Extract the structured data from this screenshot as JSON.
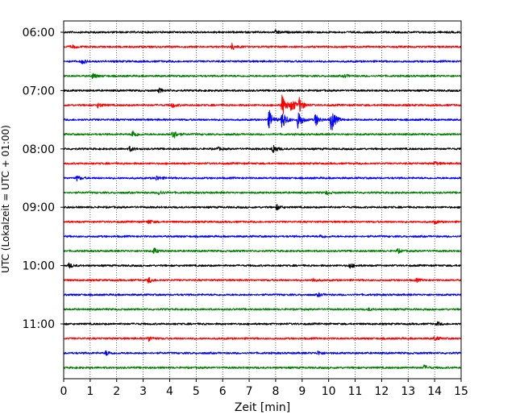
{
  "chart_data": {
    "type": "line",
    "title": "",
    "xlabel": "Zeit  [min]",
    "ylabel": "UTC (Lokalzeit = UTC + 01:00)",
    "xlim": [
      0,
      15
    ],
    "x_ticks": [
      "0",
      "1",
      "2",
      "3",
      "4",
      "5",
      "6",
      "7",
      "8",
      "9",
      "10",
      "11",
      "12",
      "13",
      "14",
      "15"
    ],
    "y_tick_labels": [
      "06:00",
      "07:00",
      "08:00",
      "09:00",
      "10:00",
      "11:00"
    ],
    "grid": "vertical dotted at each minute",
    "trace_colors_cycle": [
      "#000000",
      "#ff0000",
      "#0000ff",
      "#008000"
    ],
    "trace_interval_minutes": 15,
    "traces": [
      {
        "start": "06:00",
        "color": "#000000",
        "events": [
          {
            "t": 8.0,
            "amp": 0.25
          }
        ]
      },
      {
        "start": "06:15",
        "color": "#ff0000",
        "events": [
          {
            "t": 6.35,
            "amp": 0.4
          },
          {
            "t": 0.3,
            "amp": 0.2
          }
        ]
      },
      {
        "start": "06:30",
        "color": "#0000ff",
        "events": [
          {
            "t": 0.7,
            "amp": 0.3
          }
        ]
      },
      {
        "start": "06:45",
        "color": "#008000",
        "events": [
          {
            "t": 1.1,
            "amp": 0.35
          },
          {
            "t": 10.6,
            "amp": 0.2
          }
        ]
      },
      {
        "start": "07:00",
        "color": "#000000",
        "events": [
          {
            "t": 3.6,
            "amp": 0.25
          }
        ]
      },
      {
        "start": "07:15",
        "color": "#ff0000",
        "events": [
          {
            "t": 1.3,
            "amp": 0.3
          },
          {
            "t": 4.1,
            "amp": 0.3
          },
          {
            "t": 8.25,
            "amp": 1.5
          },
          {
            "t": 8.6,
            "amp": 0.9
          },
          {
            "t": 8.9,
            "amp": 0.9
          }
        ]
      },
      {
        "start": "07:30",
        "color": "#0000ff",
        "events": [
          {
            "t": 7.75,
            "amp": 1.2
          },
          {
            "t": 8.25,
            "amp": 1.3
          },
          {
            "t": 8.85,
            "amp": 1.2
          },
          {
            "t": 9.5,
            "amp": 0.8
          },
          {
            "t": 10.1,
            "amp": 1.6
          }
        ]
      },
      {
        "start": "07:45",
        "color": "#008000",
        "events": [
          {
            "t": 2.6,
            "amp": 0.5
          },
          {
            "t": 4.1,
            "amp": 0.8
          }
        ]
      },
      {
        "start": "08:00",
        "color": "#000000",
        "events": [
          {
            "t": 2.5,
            "amp": 0.3
          },
          {
            "t": 5.8,
            "amp": 0.2
          },
          {
            "t": 7.9,
            "amp": 0.6
          }
        ]
      },
      {
        "start": "08:15",
        "color": "#ff0000",
        "events": [
          {
            "t": 14.0,
            "amp": 0.25
          }
        ]
      },
      {
        "start": "08:30",
        "color": "#0000ff",
        "events": [
          {
            "t": 0.5,
            "amp": 0.3
          },
          {
            "t": 3.5,
            "amp": 0.3
          }
        ]
      },
      {
        "start": "08:45",
        "color": "#008000",
        "events": [
          {
            "t": 3.6,
            "amp": 0.3
          },
          {
            "t": 9.9,
            "amp": 0.2
          }
        ]
      },
      {
        "start": "09:00",
        "color": "#000000",
        "events": [
          {
            "t": 8.05,
            "amp": 0.3
          }
        ]
      },
      {
        "start": "09:15",
        "color": "#ff0000",
        "events": [
          {
            "t": 3.2,
            "amp": 0.25
          },
          {
            "t": 14.0,
            "amp": 0.2
          }
        ]
      },
      {
        "start": "09:30",
        "color": "#0000ff",
        "events": [
          {
            "t": 9.7,
            "amp": 0.2
          }
        ]
      },
      {
        "start": "09:45",
        "color": "#008000",
        "events": [
          {
            "t": 3.4,
            "amp": 0.35
          },
          {
            "t": 12.6,
            "amp": 0.25
          }
        ]
      },
      {
        "start": "10:00",
        "color": "#000000",
        "events": [
          {
            "t": 0.2,
            "amp": 0.3
          },
          {
            "t": 10.8,
            "amp": 0.3
          }
        ]
      },
      {
        "start": "10:15",
        "color": "#ff0000",
        "events": [
          {
            "t": 3.2,
            "amp": 0.35
          },
          {
            "t": 9.4,
            "amp": 0.25
          },
          {
            "t": 13.3,
            "amp": 0.2
          }
        ]
      },
      {
        "start": "10:30",
        "color": "#0000ff",
        "events": [
          {
            "t": 9.6,
            "amp": 0.2
          }
        ]
      },
      {
        "start": "10:45",
        "color": "#008000",
        "events": [
          {
            "t": 11.5,
            "amp": 0.15
          }
        ]
      },
      {
        "start": "11:00",
        "color": "#000000",
        "events": [
          {
            "t": 14.1,
            "amp": 0.2
          }
        ]
      },
      {
        "start": "11:15",
        "color": "#ff0000",
        "events": [
          {
            "t": 3.2,
            "amp": 0.35
          },
          {
            "t": 14.0,
            "amp": 0.25
          }
        ]
      },
      {
        "start": "11:30",
        "color": "#0000ff",
        "events": [
          {
            "t": 1.6,
            "amp": 0.3
          },
          {
            "t": 9.6,
            "amp": 0.25
          }
        ]
      },
      {
        "start": "11:45",
        "color": "#008000",
        "events": [
          {
            "t": 13.6,
            "amp": 0.3
          }
        ]
      }
    ]
  }
}
